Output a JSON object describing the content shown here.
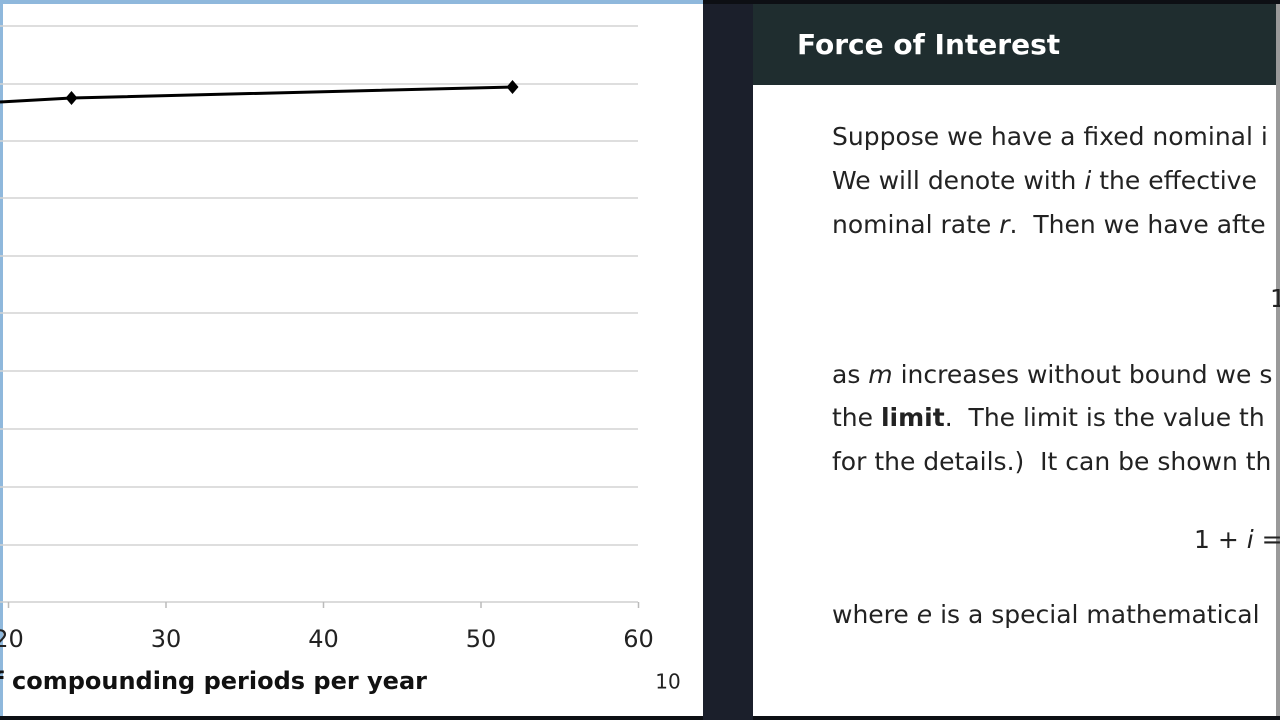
{
  "left_slide": {
    "xticks": [
      20,
      30,
      40,
      50,
      60
    ],
    "x_label": "Number of compounding periods per year",
    "points_x": [
      24,
      52
    ],
    "page_number": "10"
  },
  "right_slide": {
    "title": "Force of Interest",
    "lines": [
      [
        {
          "text": "Suppose we have a fixed nominal i",
          "style": "normal"
        }
      ],
      [
        {
          "text": "We will denote with ",
          "style": "normal"
        },
        {
          "text": "i",
          "style": "italic"
        },
        {
          "text": " the effective",
          "style": "normal"
        }
      ],
      [
        {
          "text": "nominal rate ",
          "style": "normal"
        },
        {
          "text": "r",
          "style": "italic"
        },
        {
          "text": ".  Then we have afte",
          "style": "normal"
        }
      ],
      [
        {
          "text": "as ",
          "style": "normal"
        },
        {
          "text": "m",
          "style": "italic"
        },
        {
          "text": " increases without bound we s",
          "style": "normal"
        }
      ],
      [
        {
          "text": "the ",
          "style": "normal"
        },
        {
          "text": "limit",
          "style": "bold"
        },
        {
          "text": ".  The limit is the value th",
          "style": "normal"
        }
      ],
      [
        {
          "text": "for the details.)  It can be shown th",
          "style": "normal"
        }
      ],
      [
        {
          "text": "where ",
          "style": "normal"
        },
        {
          "text": "e",
          "style": "italic"
        },
        {
          "text": " is a special mathematical",
          "style": "normal"
        }
      ]
    ],
    "formulas": [
      [
        {
          "text": "1",
          "style": "normal"
        }
      ],
      [
        {
          "text": "1 + ",
          "style": "normal"
        },
        {
          "text": "i",
          "style": "italic"
        },
        {
          "text": " =",
          "style": "normal"
        }
      ]
    ]
  }
}
